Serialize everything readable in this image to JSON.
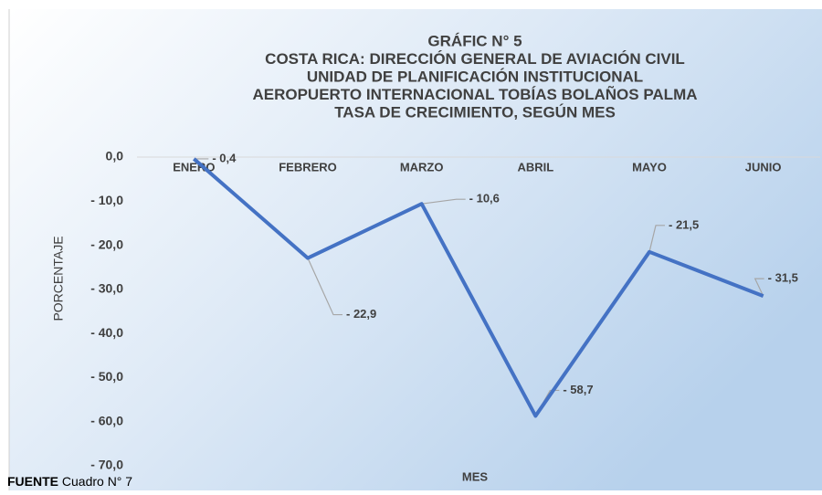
{
  "chart_data": {
    "type": "line",
    "title": [
      "GRÁFIC N° 5",
      "COSTA RICA: DIRECCIÓN GENERAL DE AVIACIÓN CIVIL",
      "UNIDAD DE PLANIFICACIÓN INSTITUCIONAL",
      "AEROPUERTO INTERNACIONAL TOBÍAS BOLAÑOS PALMA",
      "TASA DE CRECIMIENTO, SEGÚN MES"
    ],
    "categories": [
      "ENERO",
      "FEBRERO",
      "MARZO",
      "ABRIL",
      "MAYO",
      "JUNIO"
    ],
    "values": [
      -0.4,
      -22.9,
      -10.6,
      -58.7,
      -21.5,
      -31.5
    ],
    "value_labels": [
      "- 0,4",
      "- 22,9",
      "- 10,6",
      "- 58,7",
      "- 21,5",
      "- 31,5"
    ],
    "color": "#4472c4",
    "ylim": [
      -70,
      0
    ],
    "yticks": [
      {
        "value": 0,
        "label": "0,0"
      },
      {
        "value": -10,
        "label": "- 10,0"
      },
      {
        "value": -20,
        "label": "- 20,0"
      },
      {
        "value": -30,
        "label": "- 30,0"
      },
      {
        "value": -40,
        "label": "- 40,0"
      },
      {
        "value": -50,
        "label": "- 50,0"
      },
      {
        "value": -60,
        "label": "- 60,0"
      },
      {
        "value": -70,
        "label": "- 70,0"
      }
    ],
    "ylabel": "PORCENTAJE",
    "xlabel": "MES",
    "source_label": "FUENTE",
    "source": "Cuadro N° 7"
  }
}
